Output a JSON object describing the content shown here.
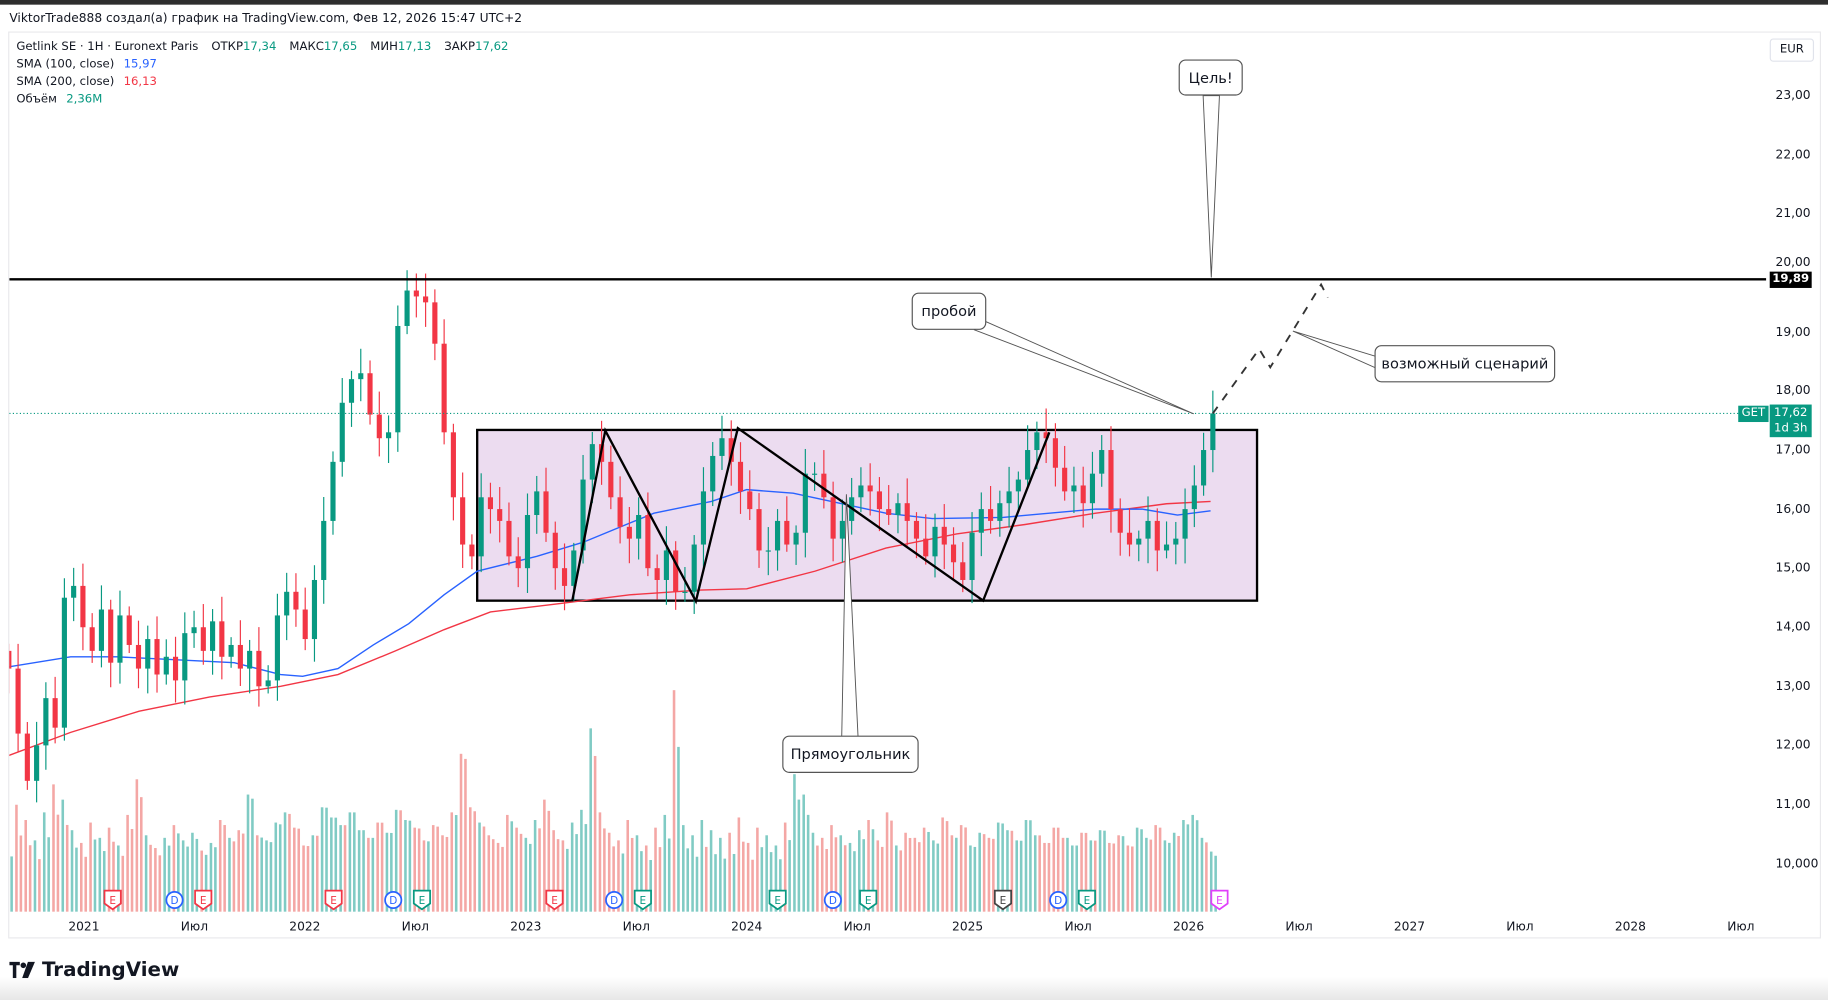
{
  "attribution": "ViktorTrade888 создал(а) график на TradingView.com, Фев 12, 2026 15:47 UTC+2",
  "legend": {
    "symbol": "Getlink SE · 1H · Euronext Paris",
    "open_label": "ОТКР",
    "open": "17,34",
    "high_label": "МАКС",
    "high": "17,65",
    "low_label": "МИН",
    "low": "17,13",
    "close_label": "ЗАКР",
    "close": "17,62",
    "sma100_label": "SMA (100, close)",
    "sma100_value": "15,97",
    "sma200_label": "SMA (200, close)",
    "sma200_value": "16,13",
    "volume_label": "Объём",
    "volume_value": "2,36M"
  },
  "currency": "EUR",
  "price_axis": [
    "23,00",
    "22,00",
    "21,00",
    "20,00",
    "19,00",
    "18,00",
    "17,00",
    "16,00",
    "15,00",
    "14,00",
    "13,00",
    "12,00",
    "11,00",
    "10,000"
  ],
  "horizontal_line_label": "19,89",
  "last_price": {
    "ticker": "GET",
    "price": "17,62",
    "countdown": "1d 3h"
  },
  "time_axis": [
    "2021",
    "Июл",
    "2022",
    "Июл",
    "2023",
    "Июл",
    "2024",
    "Июл",
    "2025",
    "Июл",
    "2026",
    "Июл",
    "2027",
    "Июл",
    "2028",
    "Июл"
  ],
  "annotations": {
    "target": "Цель!",
    "breakout": "пробой",
    "scenario": "возможный сценарий",
    "rectangle": "Прямоугольник"
  },
  "branding": "TradingView",
  "colors": {
    "up": "#089981",
    "down": "#f23645",
    "sma100": "#2962ff",
    "sma200": "#f23645",
    "rect_fill": "#ecdcf0"
  },
  "chart_data": {
    "type": "candlestick",
    "title": "Getlink SE · Euronext Paris",
    "ylabel": "EUR",
    "ylim": [
      9.3,
      23.8
    ],
    "x_start": 2020.66,
    "x_end": 2026.11,
    "closes": [
      13.3,
      12.2,
      11.4,
      12.0,
      12.8,
      12.3,
      14.5,
      14.7,
      14.0,
      13.6,
      14.3,
      13.4,
      14.2,
      13.7,
      13.3,
      13.8,
      13.2,
      13.5,
      13.1,
      13.9,
      14.0,
      13.6,
      14.1,
      13.5,
      13.7,
      13.3,
      13.6,
      13.0,
      13.1,
      14.2,
      14.6,
      14.3,
      13.8,
      14.8,
      15.8,
      16.8,
      17.8,
      18.2,
      18.3,
      17.6,
      17.2,
      17.3,
      19.1,
      19.7,
      19.6,
      19.5,
      18.8,
      17.3,
      16.2,
      15.4,
      15.2,
      16.2,
      16.0,
      15.8,
      15.2,
      15.0,
      15.9,
      16.3,
      15.6,
      15.0,
      14.7,
      15.3,
      16.5,
      17.1,
      16.8,
      16.2,
      15.7,
      15.5,
      15.9,
      15.0,
      14.8,
      15.3,
      14.6,
      14.6,
      15.4,
      16.3,
      16.9,
      17.2,
      16.8,
      16.3,
      16.0,
      15.3,
      15.3,
      15.8,
      15.4,
      15.6,
      16.6,
      16.6,
      16.2,
      15.5,
      15.8,
      16.2,
      16.4,
      16.3,
      16.0,
      15.9,
      16.1,
      15.8,
      15.5,
      15.2,
      15.7,
      15.4,
      15.1,
      14.8,
      15.6,
      16.0,
      15.8,
      16.1,
      16.3,
      16.5,
      17.0,
      17.3,
      17.2,
      16.7,
      16.3,
      16.4,
      16.1,
      16.6,
      17.0,
      16.0,
      15.6,
      15.4,
      15.5,
      15.8,
      15.3,
      15.4,
      15.5,
      16.0,
      16.4,
      17.0,
      17.62
    ],
    "volumes_m": [
      3.1,
      4.2,
      3.6,
      2.8,
      3.9,
      5.0,
      4.4,
      3.2,
      2.7,
      3.5,
      2.9,
      3.3,
      2.6,
      3.8,
      5.2,
      3.0,
      2.5,
      2.9,
      3.4,
      2.8,
      3.1,
      2.4,
      2.7,
      3.6,
      2.9,
      3.2,
      4.6,
      3.0,
      2.8,
      3.5,
      3.9,
      3.3,
      2.6,
      3.0,
      4.1,
      3.7,
      3.4,
      3.9,
      3.2,
      2.9,
      3.5,
      3.1,
      4.0,
      3.6,
      3.3,
      2.8,
      3.4,
      3.0,
      3.9,
      6.2,
      4.1,
      3.5,
      3.0,
      2.7,
      3.8,
      3.3,
      2.9,
      3.6,
      4.4,
      3.2,
      2.8,
      3.5,
      4.0,
      7.2,
      3.9,
      3.1,
      2.8,
      3.6,
      3.0,
      2.6,
      3.3,
      3.8,
      8.7,
      3.4,
      3.0,
      3.6,
      3.2,
      2.9,
      3.1,
      3.7,
      2.7,
      3.3,
      3.0,
      2.6,
      3.5,
      5.4,
      4.6,
      3.1,
      2.9,
      3.4,
      3.0,
      2.7,
      3.2,
      3.6,
      2.8,
      3.9,
      2.6,
      3.1,
      2.9,
      3.3,
      2.8,
      3.7,
      3.0,
      3.4,
      2.6,
      3.1,
      2.9,
      3.5,
      3.2,
      2.8,
      3.6,
      3.0,
      2.7,
      3.3,
      2.9,
      2.6,
      3.1,
      2.8,
      3.2,
      2.7,
      3.0,
      2.6,
      3.3,
      2.9,
      3.4,
      2.8,
      3.1,
      3.6,
      3.8,
      2.9,
      2.36
    ],
    "sma100": [
      [
        2020.66,
        13.33
      ],
      [
        2020.94,
        13.5
      ],
      [
        2021.15,
        13.5
      ],
      [
        2021.41,
        13.45
      ],
      [
        2021.68,
        13.4
      ],
      [
        2021.89,
        13.2
      ],
      [
        2021.99,
        13.17
      ],
      [
        2022.15,
        13.3
      ],
      [
        2022.31,
        13.7
      ],
      [
        2022.47,
        14.06
      ],
      [
        2022.63,
        14.55
      ],
      [
        2022.78,
        14.95
      ],
      [
        2023.05,
        15.2
      ],
      [
        2023.26,
        15.44
      ],
      [
        2023.58,
        15.93
      ],
      [
        2023.84,
        16.13
      ],
      [
        2024.0,
        16.33
      ],
      [
        2024.21,
        16.27
      ],
      [
        2024.42,
        16.1
      ],
      [
        2024.63,
        15.93
      ],
      [
        2024.84,
        15.84
      ],
      [
        2025.16,
        15.86
      ],
      [
        2025.37,
        15.93
      ],
      [
        2025.58,
        16.0
      ],
      [
        2025.79,
        16.0
      ],
      [
        2025.95,
        15.9
      ],
      [
        2026.1,
        15.97
      ]
    ],
    "sma200": [
      [
        2020.66,
        11.83
      ],
      [
        2020.94,
        12.22
      ],
      [
        2021.25,
        12.58
      ],
      [
        2021.57,
        12.82
      ],
      [
        2021.89,
        13.0
      ],
      [
        2022.15,
        13.2
      ],
      [
        2022.41,
        13.6
      ],
      [
        2022.63,
        13.96
      ],
      [
        2022.84,
        14.26
      ],
      [
        2023.15,
        14.4
      ],
      [
        2023.47,
        14.55
      ],
      [
        2023.79,
        14.63
      ],
      [
        2024.0,
        14.65
      ],
      [
        2024.31,
        14.95
      ],
      [
        2024.63,
        15.34
      ],
      [
        2024.95,
        15.58
      ],
      [
        2025.26,
        15.74
      ],
      [
        2025.58,
        15.93
      ],
      [
        2025.9,
        16.09
      ],
      [
        2026.1,
        16.13
      ]
    ],
    "resistance_level": 19.89,
    "rectangle": {
      "x": [
        2022.78,
        2026.31
      ],
      "y": [
        14.45,
        17.34
      ]
    },
    "zigzag": [
      [
        2023.21,
        14.44
      ],
      [
        2023.36,
        17.33
      ],
      [
        2023.77,
        14.44
      ],
      [
        2023.96,
        17.37
      ],
      [
        2025.07,
        14.45
      ],
      [
        2025.37,
        17.3
      ]
    ],
    "scenario_path": [
      [
        2026.11,
        17.62
      ],
      [
        2026.32,
        18.71
      ],
      [
        2026.37,
        18.4
      ],
      [
        2026.6,
        19.8
      ],
      [
        2026.63,
        19.58
      ]
    ],
    "events": [
      {
        "t": 2021.13,
        "label": "E",
        "color": "#f23645"
      },
      {
        "t": 2021.41,
        "label": "D",
        "color": "#2962ff"
      },
      {
        "t": 2021.54,
        "label": "E",
        "color": "#f23645"
      },
      {
        "t": 2022.13,
        "label": "E",
        "color": "#f23645"
      },
      {
        "t": 2022.4,
        "label": "D",
        "color": "#2962ff"
      },
      {
        "t": 2022.53,
        "label": "E",
        "color": "#089981"
      },
      {
        "t": 2023.13,
        "label": "E",
        "color": "#f23645"
      },
      {
        "t": 2023.4,
        "label": "D",
        "color": "#2962ff"
      },
      {
        "t": 2023.53,
        "label": "E",
        "color": "#089981"
      },
      {
        "t": 2024.14,
        "label": "E",
        "color": "#089981"
      },
      {
        "t": 2024.39,
        "label": "D",
        "color": "#2962ff"
      },
      {
        "t": 2024.55,
        "label": "E",
        "color": "#089981"
      },
      {
        "t": 2025.16,
        "label": "E",
        "color": "#444444"
      },
      {
        "t": 2025.41,
        "label": "D",
        "color": "#2962ff"
      },
      {
        "t": 2025.54,
        "label": "E",
        "color": "#089981"
      },
      {
        "t": 2026.14,
        "label": "E",
        "color": "#e040fb"
      }
    ]
  }
}
